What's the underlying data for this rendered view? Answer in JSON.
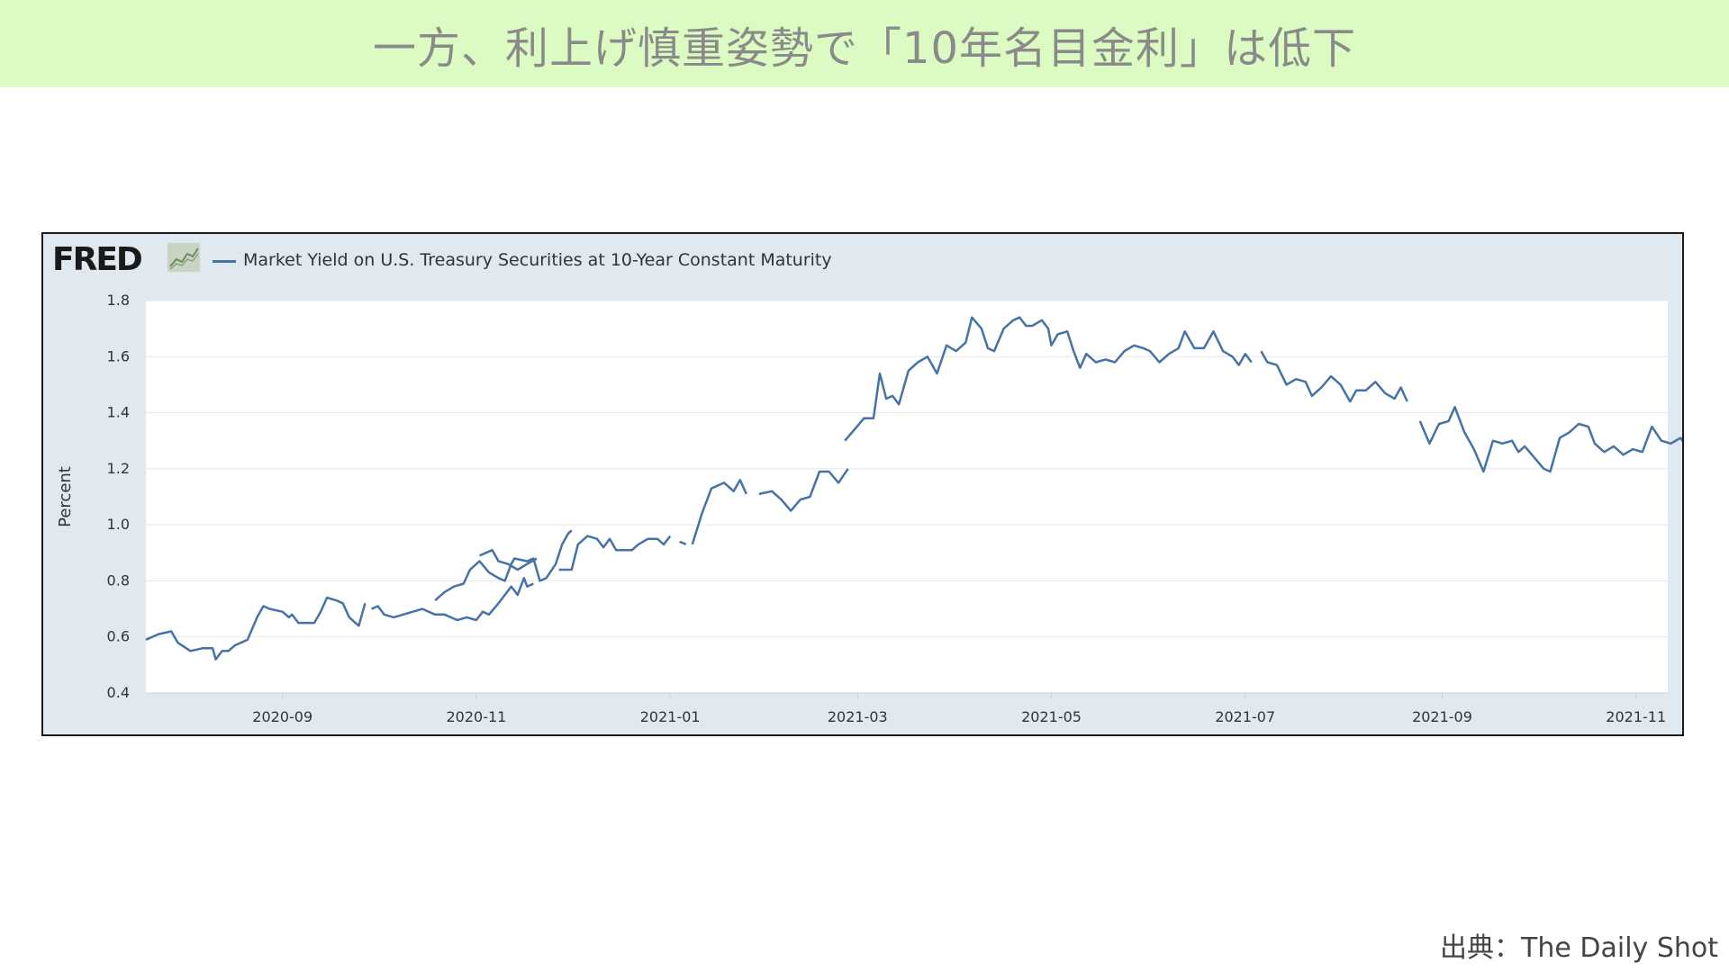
{
  "slide": {
    "title": "一方、利上げ慎重姿勢で「10年名目金利」は低下",
    "source": "出典：The Daily Shot"
  },
  "fred": {
    "logo_text": "FRED",
    "icon": "fred-line-chart-icon"
  },
  "colors": {
    "title_band": "#dbfbc3",
    "chart_background": "#e1e9f0",
    "plot_background": "#ffffff",
    "series_line": "#4572a7",
    "gridline": "#e6e6e6"
  },
  "chart_data": {
    "type": "line",
    "ylabel": "Percent",
    "ylim": [
      0.4,
      1.8
    ],
    "y_ticks": [
      0.4,
      0.6,
      0.8,
      1.0,
      1.2,
      1.4,
      1.6,
      1.8
    ],
    "xlim": [
      "2020-07-20",
      "2021-11-11"
    ],
    "x_ticks": [
      "2020-09-01",
      "2020-11-01",
      "2021-01-01",
      "2021-03-01",
      "2021-05-01",
      "2021-07-01",
      "2021-09-01",
      "2021-11-01"
    ],
    "x_tick_labels": [
      "2020-09",
      "2020-11",
      "2021-01",
      "2021-03",
      "2021-05",
      "2021-07",
      "2021-09",
      "2021-11"
    ],
    "grid": "horizontal",
    "legend_position": "top-left",
    "series": [
      {
        "name": "Market Yield on U.S. Treasury Securities at 10-Year Constant Maturity",
        "color": "#4572a7",
        "points": [
          [
            "2020-07-20",
            0.59
          ],
          [
            "2020-07-24",
            0.61
          ],
          [
            "2020-07-28",
            0.62
          ],
          [
            "2020-07-30",
            0.58
          ],
          [
            "2020-08-03",
            0.55
          ],
          [
            "2020-08-07",
            0.56
          ],
          [
            "2020-08-10",
            0.56
          ],
          [
            "2020-08-11",
            0.52
          ],
          [
            "2020-08-13",
            0.55
          ],
          [
            "2020-08-15",
            0.55
          ],
          [
            "2020-08-17",
            0.57
          ],
          [
            "2020-08-21",
            0.59
          ],
          [
            "2020-08-24",
            0.67
          ],
          [
            "2020-08-26",
            0.71
          ],
          [
            "2020-08-28",
            0.7
          ],
          [
            "2020-09-01",
            0.69
          ],
          [
            "2020-09-03",
            0.67
          ],
          [
            "2020-09-04",
            0.68
          ],
          [
            "2020-09-06",
            0.65
          ],
          [
            "2020-09-09",
            0.65
          ],
          [
            "2020-09-11",
            0.65
          ],
          [
            "2020-09-13",
            0.69
          ],
          [
            "2020-09-15",
            0.74
          ],
          [
            "2020-09-18",
            0.73
          ],
          [
            "2020-09-20",
            0.72
          ],
          [
            "2020-09-22",
            0.67
          ],
          [
            "2020-09-25",
            0.64
          ],
          [
            "2020-09-27",
            0.72
          ],
          null,
          [
            "2020-09-29",
            0.7
          ],
          [
            "2020-10-01",
            0.71
          ],
          [
            "2020-10-03",
            0.68
          ],
          [
            "2020-10-06",
            0.67
          ],
          [
            "2020-10-09",
            0.68
          ],
          [
            "2020-10-12",
            0.69
          ],
          [
            "2020-10-15",
            0.7
          ],
          [
            "2020-10-19",
            0.68
          ],
          [
            "2020-10-22",
            0.68
          ],
          [
            "2020-10-26",
            0.66
          ],
          [
            "2020-10-29",
            0.67
          ],
          [
            "2020-11-01",
            0.66
          ],
          [
            "2020-11-03",
            0.69
          ],
          [
            "2020-11-05",
            0.68
          ],
          [
            "2020-11-08",
            0.72
          ],
          [
            "2020-11-12",
            0.78
          ],
          [
            "2020-11-14",
            0.75
          ],
          [
            "2020-11-16",
            0.81
          ],
          [
            "2020-11-17",
            0.78
          ],
          [
            "2020-11-19",
            0.79
          ],
          null,
          [
            "2020-10-19",
            0.73
          ],
          [
            "2020-10-20",
            0.74
          ],
          [
            "2020-10-22",
            0.76
          ],
          [
            "2020-10-25",
            0.78
          ],
          [
            "2020-10-28",
            0.79
          ],
          [
            "2020-10-30",
            0.84
          ],
          [
            "2020-11-02",
            0.87
          ],
          [
            "2020-11-05",
            0.83
          ],
          [
            "2020-11-08",
            0.81
          ],
          [
            "2020-11-10",
            0.8
          ],
          [
            "2020-11-12",
            0.86
          ],
          [
            "2020-11-13",
            0.88
          ],
          [
            "2020-11-17",
            0.87
          ],
          [
            "2020-11-19",
            0.88
          ],
          [
            "2020-11-21",
            0.8
          ],
          [
            "2020-11-23",
            0.81
          ],
          [
            "2020-11-26",
            0.86
          ],
          [
            "2020-11-28",
            0.93
          ],
          [
            "2020-11-30",
            0.97
          ],
          [
            "2020-12-01",
            0.98
          ],
          null,
          [
            "2020-11-02",
            0.89
          ],
          [
            "2020-11-06",
            0.91
          ],
          [
            "2020-11-08",
            0.87
          ],
          [
            "2020-11-11",
            0.86
          ],
          [
            "2020-11-14",
            0.84
          ],
          [
            "2020-11-17",
            0.86
          ],
          [
            "2020-11-20",
            0.88
          ],
          null,
          [
            "2020-11-27",
            0.84
          ],
          [
            "2020-12-01",
            0.84
          ],
          [
            "2020-12-03",
            0.93
          ],
          [
            "2020-12-06",
            0.96
          ],
          [
            "2020-12-09",
            0.95
          ],
          [
            "2020-12-11",
            0.92
          ],
          [
            "2020-12-13",
            0.95
          ],
          [
            "2020-12-15",
            0.91
          ],
          [
            "2020-12-17",
            0.91
          ],
          [
            "2020-12-20",
            0.91
          ],
          [
            "2020-12-22",
            0.93
          ],
          [
            "2020-12-25",
            0.95
          ],
          [
            "2020-12-28",
            0.95
          ],
          [
            "2020-12-30",
            0.93
          ],
          [
            "2021-01-01",
            0.96
          ],
          null,
          [
            "2021-01-04",
            0.94
          ],
          [
            "2021-01-06",
            0.93
          ],
          null,
          [
            "2021-01-08",
            0.93
          ],
          [
            "2021-01-11",
            1.04
          ],
          [
            "2021-01-14",
            1.13
          ],
          [
            "2021-01-18",
            1.15
          ],
          [
            "2021-01-21",
            1.12
          ],
          [
            "2021-01-23",
            1.16
          ],
          [
            "2021-01-25",
            1.11
          ],
          null,
          [
            "2021-01-29",
            1.11
          ],
          [
            "2021-02-02",
            1.12
          ],
          [
            "2021-02-05",
            1.09
          ],
          [
            "2021-02-08",
            1.05
          ],
          [
            "2021-02-11",
            1.09
          ],
          [
            "2021-02-14",
            1.1
          ],
          [
            "2021-02-17",
            1.19
          ],
          [
            "2021-02-20",
            1.19
          ],
          [
            "2021-02-23",
            1.15
          ],
          [
            "2021-02-26",
            1.2
          ],
          null,
          [
            "2021-02-25",
            1.3
          ],
          [
            "2021-02-28",
            1.34
          ],
          [
            "2021-03-03",
            1.38
          ],
          [
            "2021-03-06",
            1.38
          ],
          [
            "2021-03-08",
            1.54
          ],
          [
            "2021-03-10",
            1.45
          ],
          [
            "2021-03-12",
            1.46
          ],
          [
            "2021-03-14",
            1.43
          ],
          [
            "2021-03-17",
            1.55
          ],
          [
            "2021-03-20",
            1.58
          ],
          [
            "2021-03-23",
            1.6
          ],
          [
            "2021-03-26",
            1.54
          ],
          [
            "2021-03-29",
            1.64
          ],
          [
            "2021-04-01",
            1.62
          ],
          [
            "2021-04-04",
            1.65
          ],
          [
            "2021-04-06",
            1.74
          ],
          [
            "2021-04-09",
            1.7
          ],
          [
            "2021-04-11",
            1.63
          ],
          [
            "2021-04-13",
            1.62
          ],
          [
            "2021-04-16",
            1.7
          ],
          [
            "2021-04-19",
            1.73
          ],
          [
            "2021-04-21",
            1.74
          ],
          [
            "2021-04-23",
            1.71
          ],
          [
            "2021-04-25",
            1.71
          ],
          [
            "2021-04-28",
            1.73
          ],
          [
            "2021-04-30",
            1.7
          ],
          [
            "2021-05-01",
            1.64
          ],
          [
            "2021-05-03",
            1.68
          ],
          [
            "2021-05-06",
            1.69
          ],
          [
            "2021-05-08",
            1.62
          ],
          [
            "2021-05-10",
            1.56
          ],
          [
            "2021-05-12",
            1.61
          ],
          [
            "2021-05-15",
            1.58
          ],
          [
            "2021-05-18",
            1.59
          ],
          [
            "2021-05-21",
            1.58
          ],
          [
            "2021-05-24",
            1.62
          ],
          [
            "2021-05-27",
            1.64
          ],
          [
            "2021-05-30",
            1.63
          ],
          [
            "2021-06-01",
            1.62
          ],
          [
            "2021-06-04",
            1.58
          ],
          [
            "2021-06-07",
            1.61
          ],
          [
            "2021-06-10",
            1.63
          ],
          [
            "2021-06-12",
            1.69
          ],
          [
            "2021-06-15",
            1.63
          ],
          [
            "2021-06-18",
            1.63
          ],
          [
            "2021-06-21",
            1.69
          ],
          [
            "2021-06-24",
            1.62
          ],
          [
            "2021-06-27",
            1.6
          ],
          [
            "2021-06-29",
            1.57
          ],
          [
            "2021-07-01",
            1.61
          ],
          [
            "2021-07-03",
            1.58
          ],
          null,
          [
            "2021-07-06",
            1.62
          ],
          [
            "2021-07-08",
            1.58
          ],
          [
            "2021-07-11",
            1.57
          ],
          [
            "2021-07-14",
            1.5
          ],
          [
            "2021-07-17",
            1.52
          ],
          [
            "2021-07-20",
            1.51
          ],
          [
            "2021-07-22",
            1.46
          ],
          [
            "2021-07-25",
            1.49
          ],
          [
            "2021-07-28",
            1.53
          ],
          [
            "2021-07-31",
            1.5
          ],
          [
            "2021-08-03",
            1.44
          ],
          [
            "2021-08-05",
            1.48
          ],
          [
            "2021-08-08",
            1.48
          ],
          [
            "2021-08-11",
            1.51
          ],
          [
            "2021-08-14",
            1.47
          ],
          [
            "2021-08-17",
            1.45
          ],
          [
            "2021-08-19",
            1.49
          ],
          [
            "2021-08-21",
            1.44
          ],
          null,
          [
            "2021-08-25",
            1.37
          ],
          [
            "2021-08-28",
            1.29
          ],
          [
            "2021-08-31",
            1.36
          ],
          [
            "2021-09-03",
            1.37
          ],
          [
            "2021-09-05",
            1.42
          ],
          [
            "2021-09-08",
            1.33
          ],
          [
            "2021-09-11",
            1.27
          ],
          [
            "2021-09-14",
            1.19
          ],
          [
            "2021-09-17",
            1.3
          ],
          [
            "2021-09-20",
            1.29
          ],
          [
            "2021-09-23",
            1.3
          ],
          [
            "2021-09-25",
            1.26
          ],
          [
            "2021-09-27",
            1.28
          ],
          [
            "2021-09-30",
            1.24
          ],
          [
            "2021-10-03",
            1.2
          ],
          [
            "2021-10-05",
            1.19
          ],
          [
            "2021-10-08",
            1.31
          ],
          [
            "2021-10-11",
            1.33
          ],
          [
            "2021-10-14",
            1.36
          ],
          [
            "2021-10-17",
            1.35
          ],
          [
            "2021-10-19",
            1.29
          ],
          [
            "2021-10-22",
            1.26
          ],
          [
            "2021-10-25",
            1.28
          ],
          [
            "2021-10-28",
            1.25
          ],
          [
            "2021-10-31",
            1.27
          ],
          [
            "2021-11-03",
            1.26
          ],
          [
            "2021-11-06",
            1.35
          ],
          [
            "2021-11-09",
            1.3
          ],
          [
            "2021-11-12",
            1.29
          ],
          [
            "2021-11-15",
            1.31
          ],
          [
            "2021-11-17",
            1.28
          ],
          [
            "2021-11-19",
            1.33
          ],
          null,
          [
            "2021-11-24",
            1.38
          ],
          [
            "2021-11-26",
            1.3
          ],
          [
            "2021-11-29",
            1.35
          ],
          [
            "2021-12-03",
            1.33
          ],
          [
            "2021-12-06",
            1.29
          ],
          [
            "2021-12-09",
            1.37
          ],
          [
            "2021-12-12",
            1.31
          ],
          [
            "2021-12-15",
            1.33
          ],
          [
            "2021-12-18",
            1.47
          ],
          [
            "2021-12-21",
            1.49
          ],
          [
            "2021-12-24",
            1.55
          ],
          [
            "2021-12-27",
            1.49
          ],
          [
            "2021-12-30",
            1.52
          ],
          [
            "2022-01-03",
            1.53
          ],
          [
            "2022-01-05",
            1.57
          ],
          [
            "2022-01-07",
            1.61
          ],
          null,
          [
            "2022-01-13",
            1.59
          ],
          [
            "2022-01-16",
            1.52
          ],
          [
            "2022-01-19",
            1.63
          ],
          [
            "2022-01-22",
            1.63
          ],
          [
            "2022-01-25",
            1.68
          ],
          [
            "2022-01-28",
            1.66
          ],
          [
            "2022-01-31",
            1.63
          ],
          [
            "2022-02-02",
            1.55
          ],
          [
            "2022-02-05",
            1.56
          ],
          [
            "2022-02-08",
            1.59
          ],
          [
            "2022-02-11",
            1.57
          ],
          [
            "2022-02-13",
            1.6
          ],
          [
            "2022-02-15",
            1.46
          ]
        ]
      }
    ]
  }
}
